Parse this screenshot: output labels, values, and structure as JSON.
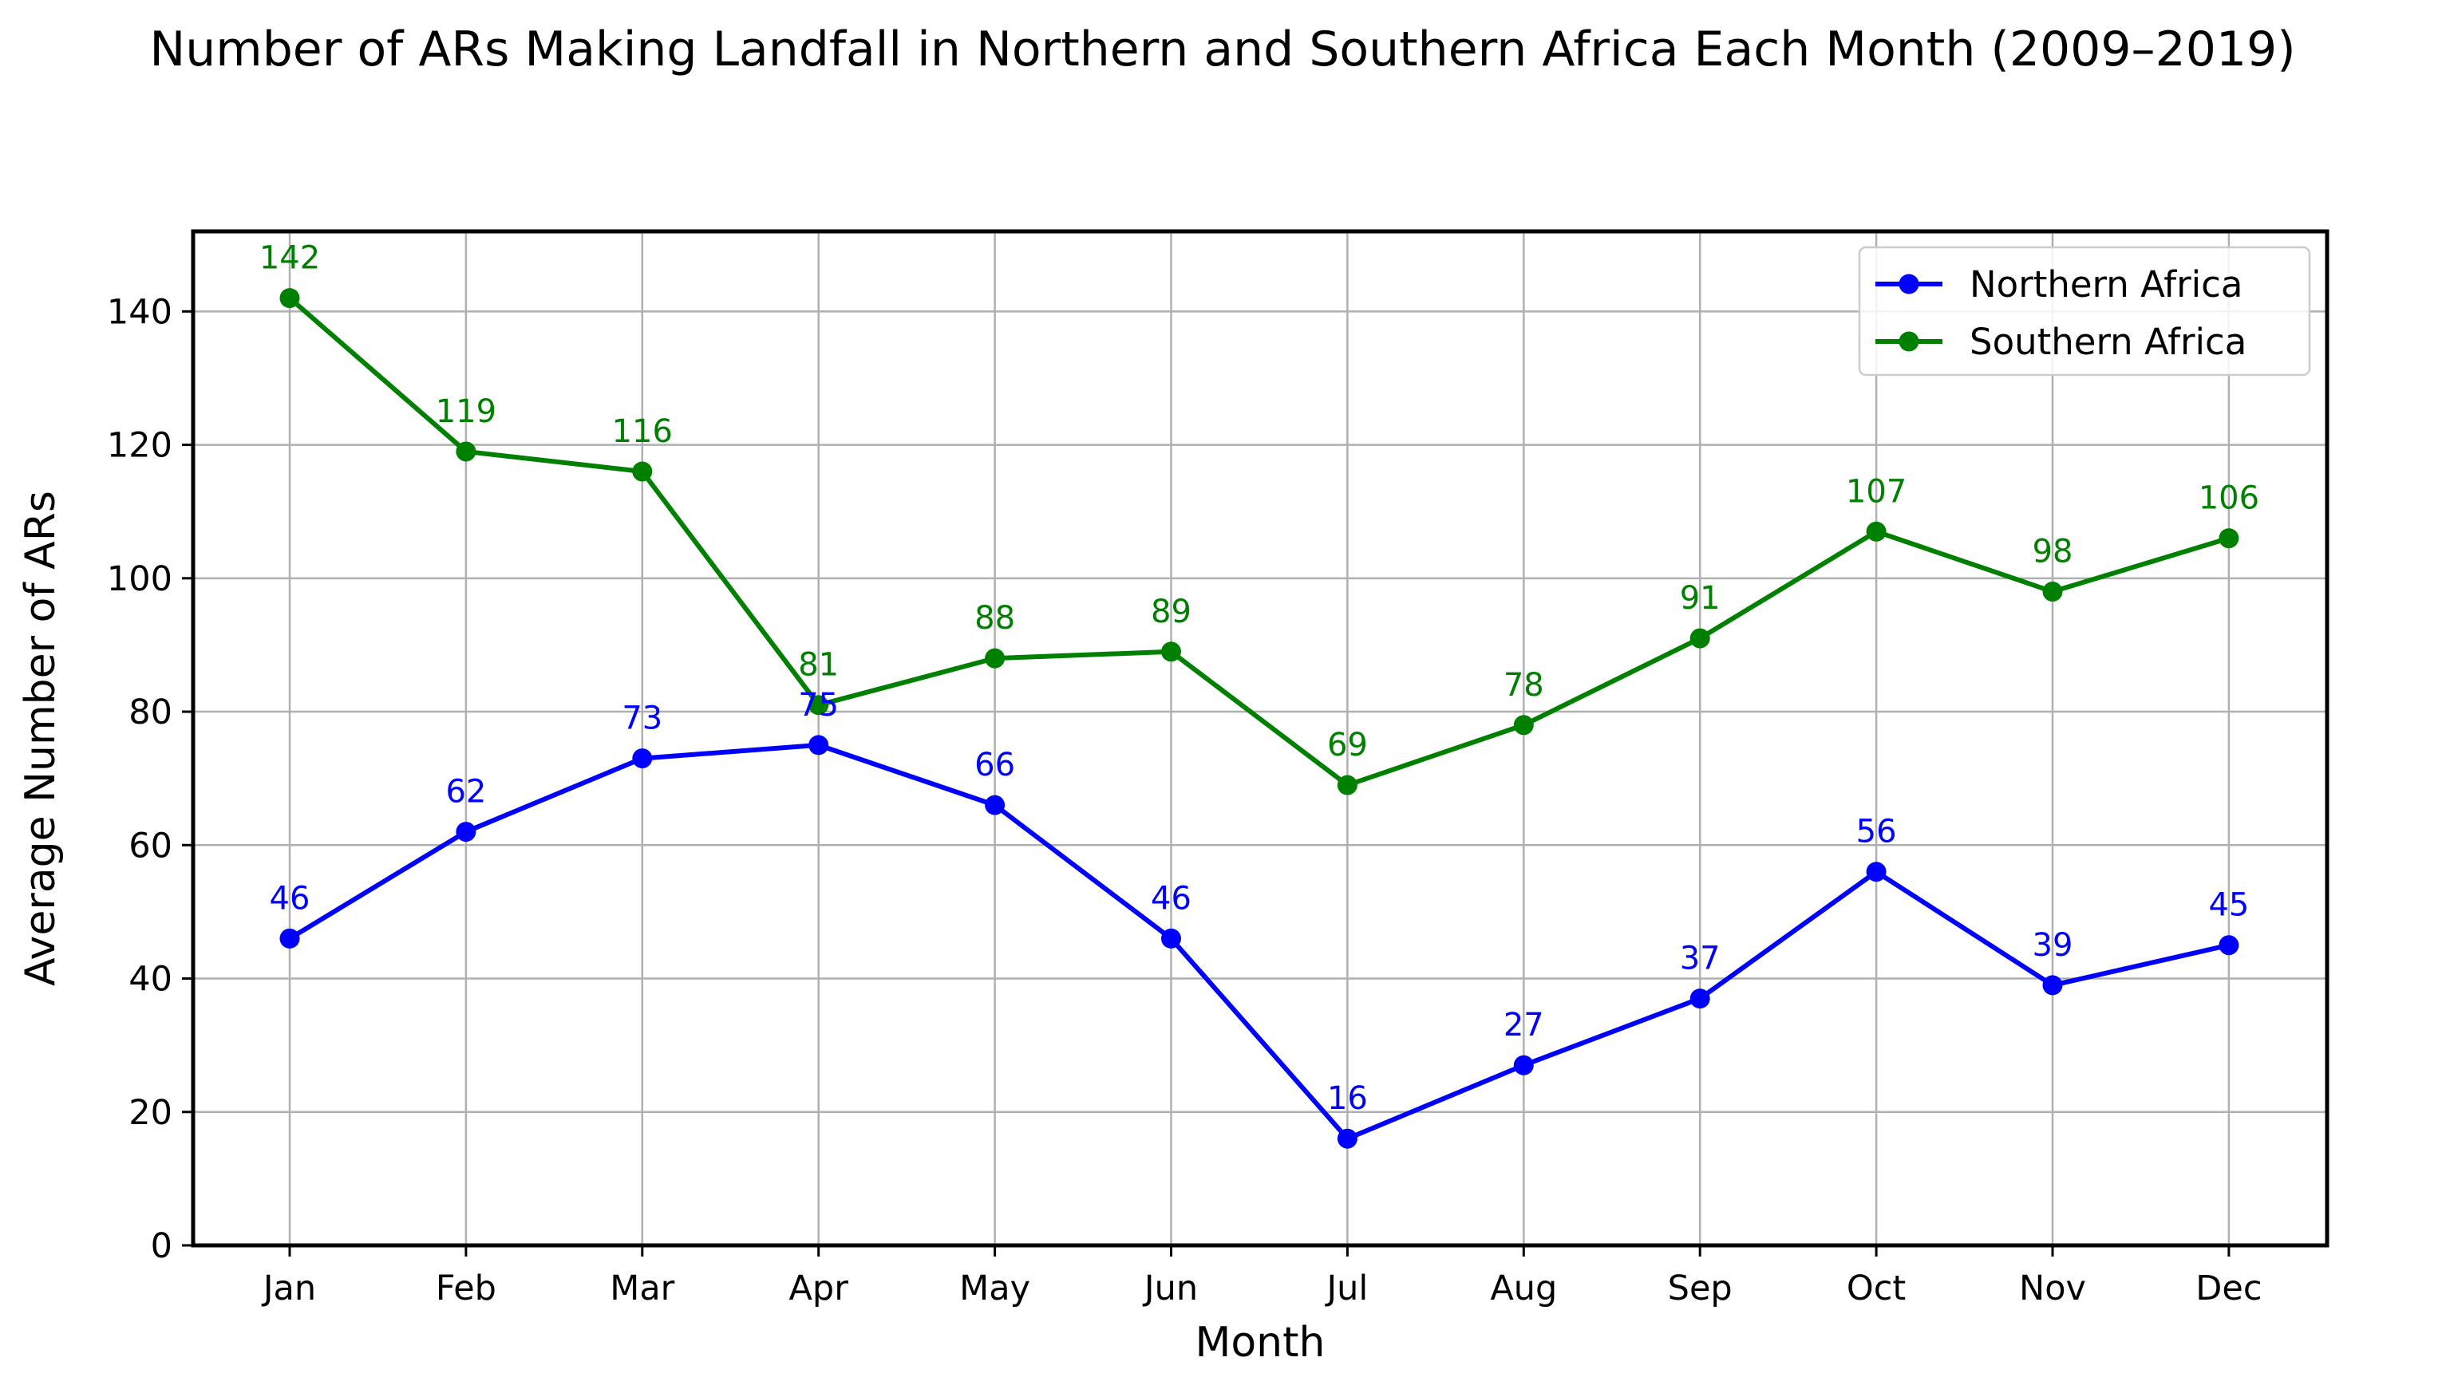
{
  "chart_data": {
    "type": "line",
    "title": "Number of ARs Making Landfall in Northern and Southern Africa Each Month (2009–2019)",
    "xlabel": "Month",
    "ylabel": "Average Number of ARs",
    "categories": [
      "Jan",
      "Feb",
      "Mar",
      "Apr",
      "May",
      "Jun",
      "Jul",
      "Aug",
      "Sep",
      "Oct",
      "Nov",
      "Dec"
    ],
    "ylim": [
      0,
      152
    ],
    "yticks": [
      0,
      20,
      40,
      60,
      80,
      100,
      120,
      140
    ],
    "grid": true,
    "legend_position": "top-right",
    "series": [
      {
        "name": "Northern Africa",
        "color": "#0000ff",
        "marker": "circle",
        "values": [
          46,
          62,
          73,
          75,
          66,
          46,
          16,
          27,
          37,
          56,
          39,
          45
        ]
      },
      {
        "name": "Southern Africa",
        "color": "#008000",
        "marker": "circle",
        "values": [
          142,
          119,
          116,
          81,
          88,
          89,
          69,
          78,
          91,
          107,
          98,
          106
        ]
      }
    ]
  }
}
